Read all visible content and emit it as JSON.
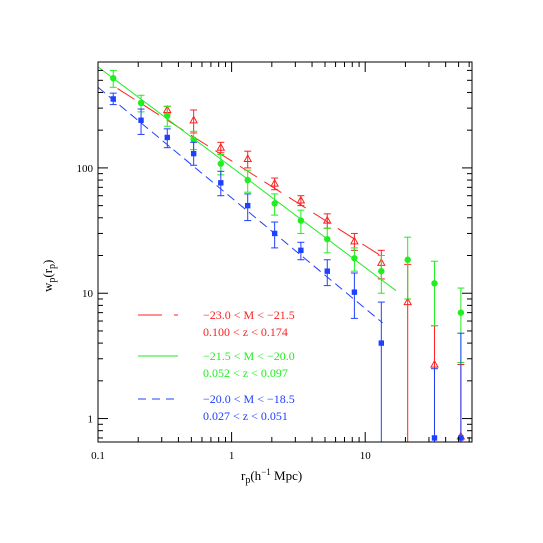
{
  "chart_data": {
    "type": "scatter",
    "title": "",
    "xlabel": {
      "base": "r",
      "sub": "p",
      "unit": "(h",
      "exp": "−1",
      "unit_end": " Mpc)"
    },
    "ylabel": {
      "base": "w",
      "sub1": "p",
      "mid": "(r",
      "sub2": "p",
      "end": ")"
    },
    "x_scale": "log",
    "y_scale": "log",
    "xlim": [
      0.1,
      63
    ],
    "ylim": [
      0.65,
      700
    ],
    "x_ticks": [
      {
        "value": 0.1,
        "label": "0.1"
      },
      {
        "value": 1,
        "label": "1"
      },
      {
        "value": 10,
        "label": "10"
      }
    ],
    "y_ticks": [
      {
        "value": 1,
        "label": "1"
      },
      {
        "value": 10,
        "label": "10"
      },
      {
        "value": 100,
        "label": "100"
      }
    ],
    "grid": false,
    "legend_position": "bottom-left",
    "series": [
      {
        "color": "#ff2020",
        "marker": "open-triangle",
        "line_style": "long-dash",
        "legend_line1": "−23.0 < M < −21.5",
        "legend_line2": "0.100 < z < 0.174",
        "fit": {
          "x_range": [
            0.14,
            13.5
          ],
          "y_at": [
            430,
            19.5
          ]
        },
        "points": [
          {
            "x": 0.33,
            "y": 290,
            "lo": 270,
            "hi": 310
          },
          {
            "x": 0.52,
            "y": 240,
            "lo": 190,
            "hi": 290
          },
          {
            "x": 0.83,
            "y": 145,
            "lo": 132,
            "hi": 160
          },
          {
            "x": 1.32,
            "y": 118,
            "lo": 100,
            "hi": 136
          },
          {
            "x": 2.1,
            "y": 75,
            "lo": 67,
            "hi": 83
          },
          {
            "x": 3.3,
            "y": 55,
            "lo": 50,
            "hi": 60
          },
          {
            "x": 5.2,
            "y": 38,
            "lo": 33,
            "hi": 43
          },
          {
            "x": 8.3,
            "y": 26,
            "lo": 22,
            "hi": 30
          },
          {
            "x": 13.2,
            "y": 17.5,
            "lo": 13,
            "hi": 22
          },
          {
            "x": 20.8,
            "y": 8.5,
            "lo": 0.65,
            "hi": 17
          },
          {
            "x": 33,
            "y": 2.7,
            "lo": 0.65,
            "hi": 5.5
          },
          {
            "x": 52,
            "y": 0.72,
            "lo": 0.65,
            "hi": 2.7
          }
        ]
      },
      {
        "color": "#20ee20",
        "marker": "filled-circle",
        "line_style": "solid",
        "legend_line1": "−21.5 < M < −20.0",
        "legend_line2": "0.052 < z < 0.097",
        "fit": {
          "x_range": [
            0.1,
            17
          ],
          "y_at": [
            640,
            10.5
          ]
        },
        "points": [
          {
            "x": 0.13,
            "y": 520,
            "lo": 440,
            "hi": 600
          },
          {
            "x": 0.21,
            "y": 330,
            "lo": 280,
            "hi": 380
          },
          {
            "x": 0.33,
            "y": 260,
            "lo": 215,
            "hi": 310
          },
          {
            "x": 0.52,
            "y": 168,
            "lo": 140,
            "hi": 196
          },
          {
            "x": 0.83,
            "y": 108,
            "lo": 88,
            "hi": 128
          },
          {
            "x": 1.32,
            "y": 80,
            "lo": 64,
            "hi": 96
          },
          {
            "x": 2.1,
            "y": 52,
            "lo": 42,
            "hi": 62
          },
          {
            "x": 3.3,
            "y": 38,
            "lo": 30,
            "hi": 46
          },
          {
            "x": 5.2,
            "y": 27,
            "lo": 21,
            "hi": 33
          },
          {
            "x": 8.3,
            "y": 19,
            "lo": 15,
            "hi": 23
          },
          {
            "x": 13.2,
            "y": 15,
            "lo": 10,
            "hi": 20
          },
          {
            "x": 20.8,
            "y": 18.5,
            "lo": 9,
            "hi": 28
          },
          {
            "x": 33,
            "y": 12,
            "lo": 5.5,
            "hi": 18
          },
          {
            "x": 52,
            "y": 7,
            "lo": 2.8,
            "hi": 11
          }
        ]
      },
      {
        "color": "#2040ff",
        "marker": "filled-square",
        "line_style": "short-dash",
        "legend_line1": "−20.0 < M < −18.5",
        "legend_line2": "0.027 < z < 0.051",
        "fit": {
          "x_range": [
            0.1,
            13.5
          ],
          "y_at": [
            440,
            5.8
          ]
        },
        "points": [
          {
            "x": 0.13,
            "y": 355,
            "lo": 320,
            "hi": 395
          },
          {
            "x": 0.21,
            "y": 240,
            "lo": 185,
            "hi": 295
          },
          {
            "x": 0.33,
            "y": 175,
            "lo": 145,
            "hi": 205
          },
          {
            "x": 0.52,
            "y": 130,
            "lo": 105,
            "hi": 160
          },
          {
            "x": 0.83,
            "y": 76,
            "lo": 60,
            "hi": 94
          },
          {
            "x": 1.32,
            "y": 50,
            "lo": 38,
            "hi": 62
          },
          {
            "x": 2.1,
            "y": 30,
            "lo": 23,
            "hi": 37
          },
          {
            "x": 3.3,
            "y": 22,
            "lo": 18.5,
            "hi": 25.5
          },
          {
            "x": 5.2,
            "y": 15,
            "lo": 11.5,
            "hi": 18.5
          },
          {
            "x": 8.3,
            "y": 10.2,
            "lo": 6.3,
            "hi": 14.5
          },
          {
            "x": 13.2,
            "y": 4,
            "lo": 0.65,
            "hi": 8.5
          },
          {
            "x": 33,
            "y": 0.7,
            "lo": 0.65,
            "hi": 2.5
          },
          {
            "x": 52,
            "y": 0.7,
            "lo": 0.65,
            "hi": 4.8
          }
        ]
      }
    ]
  }
}
